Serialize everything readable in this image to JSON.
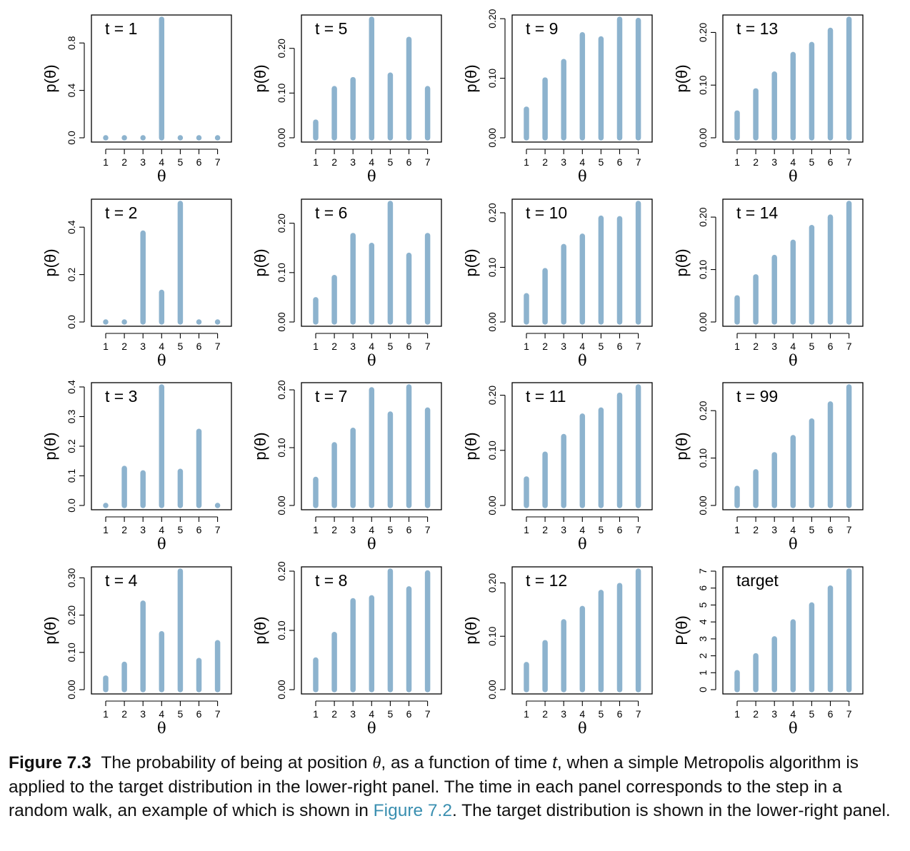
{
  "chart_data": [
    {
      "type": "bar",
      "title": "t = 1",
      "xlabel": "θ",
      "ylabel": "p(θ)",
      "categories": [
        "1",
        "2",
        "3",
        "4",
        "5",
        "6",
        "7"
      ],
      "values": [
        0,
        0,
        0,
        1,
        0,
        0,
        0
      ],
      "ylim": [
        0,
        1.0
      ],
      "yticks": [
        "0.0",
        "0.4",
        "0.8"
      ],
      "ytick_values": [
        0,
        0.4,
        0.8
      ]
    },
    {
      "type": "bar",
      "title": "t = 2",
      "xlabel": "θ",
      "ylabel": "p(θ)",
      "categories": [
        "1",
        "2",
        "3",
        "4",
        "5",
        "6",
        "7"
      ],
      "values": [
        0,
        0,
        0.375,
        0.125,
        0.5,
        0,
        0
      ],
      "ylim": [
        0,
        0.5
      ],
      "yticks": [
        "0.0",
        "0.2",
        "0.4"
      ],
      "ytick_values": [
        0,
        0.2,
        0.4
      ]
    },
    {
      "type": "bar",
      "title": "t = 3",
      "xlabel": "θ",
      "ylabel": "p(θ)",
      "categories": [
        "1",
        "2",
        "3",
        "4",
        "5",
        "6",
        "7"
      ],
      "values": [
        0,
        0.125,
        0.11,
        0.4,
        0.115,
        0.25,
        0
      ],
      "ylim": [
        0,
        0.4
      ],
      "yticks": [
        "0.0",
        "0.1",
        "0.2",
        "0.3",
        "0.4"
      ],
      "ytick_values": [
        0,
        0.1,
        0.2,
        0.3,
        0.4
      ]
    },
    {
      "type": "bar",
      "title": "t = 4",
      "xlabel": "θ",
      "ylabel": "p(θ)",
      "categories": [
        "1",
        "2",
        "3",
        "4",
        "5",
        "6",
        "7"
      ],
      "values": [
        0.031,
        0.068,
        0.232,
        0.15,
        0.318,
        0.078,
        0.126
      ],
      "ylim": [
        0,
        0.318
      ],
      "yticks": [
        "0.00",
        "0.10",
        "0.20",
        "0.30"
      ],
      "ytick_values": [
        0,
        0.1,
        0.2,
        0.3
      ]
    },
    {
      "type": "bar",
      "title": "t = 5",
      "xlabel": "θ",
      "ylabel": "p(θ)",
      "categories": [
        "1",
        "2",
        "3",
        "4",
        "5",
        "6",
        "7"
      ],
      "values": [
        0.035,
        0.11,
        0.13,
        0.265,
        0.14,
        0.22,
        0.11
      ],
      "ylim": [
        0,
        0.265
      ],
      "yticks": [
        "0.00",
        "0.10",
        "0.20"
      ],
      "ytick_values": [
        0,
        0.1,
        0.2
      ]
    },
    {
      "type": "bar",
      "title": "t = 6",
      "xlabel": "θ",
      "ylabel": "p(θ)",
      "categories": [
        "1",
        "2",
        "3",
        "4",
        "5",
        "6",
        "7"
      ],
      "values": [
        0.045,
        0.09,
        0.175,
        0.155,
        0.24,
        0.135,
        0.175
      ],
      "ylim": [
        0,
        0.24
      ],
      "yticks": [
        "0.00",
        "0.10",
        "0.20"
      ],
      "ytick_values": [
        0,
        0.1,
        0.2
      ]
    },
    {
      "type": "bar",
      "title": "t = 7",
      "xlabel": "θ",
      "ylabel": "p(θ)",
      "categories": [
        "1",
        "2",
        "3",
        "4",
        "5",
        "6",
        "7"
      ],
      "values": [
        0.045,
        0.105,
        0.13,
        0.2,
        0.158,
        0.205,
        0.165
      ],
      "ylim": [
        0,
        0.205
      ],
      "yticks": [
        "0.00",
        "0.10",
        "0.20"
      ],
      "ytick_values": [
        0,
        0.1,
        0.2
      ]
    },
    {
      "type": "bar",
      "title": "t = 8",
      "xlabel": "θ",
      "ylabel": "p(θ)",
      "categories": [
        "1",
        "2",
        "3",
        "4",
        "5",
        "6",
        "7"
      ],
      "values": [
        0.05,
        0.093,
        0.15,
        0.155,
        0.2,
        0.17,
        0.197
      ],
      "ylim": [
        0,
        0.2
      ],
      "yticks": [
        "0.00",
        "0.10",
        "0.20"
      ],
      "ytick_values": [
        0,
        0.1,
        0.2
      ]
    },
    {
      "type": "bar",
      "title": "t = 9",
      "xlabel": "θ",
      "ylabel": "p(θ)",
      "categories": [
        "1",
        "2",
        "3",
        "4",
        "5",
        "6",
        "7"
      ],
      "values": [
        0.048,
        0.097,
        0.128,
        0.173,
        0.166,
        0.199,
        0.197
      ],
      "ylim": [
        0,
        0.199
      ],
      "yticks": [
        "0.00",
        "0.10",
        "0.20"
      ],
      "ytick_values": [
        0,
        0.1,
        0.2
      ]
    },
    {
      "type": "bar",
      "title": "t = 10",
      "xlabel": "θ",
      "ylabel": "p(θ)",
      "categories": [
        "1",
        "2",
        "3",
        "4",
        "5",
        "6",
        "7"
      ],
      "values": [
        0.048,
        0.094,
        0.138,
        0.157,
        0.19,
        0.189,
        0.217
      ],
      "ylim": [
        0,
        0.217
      ],
      "yticks": [
        "0.00",
        "0.10",
        "0.20"
      ],
      "ytick_values": [
        0,
        0.1,
        0.2
      ]
    },
    {
      "type": "bar",
      "title": "t = 11",
      "xlabel": "θ",
      "ylabel": "p(θ)",
      "categories": [
        "1",
        "2",
        "3",
        "4",
        "5",
        "6",
        "7"
      ],
      "values": [
        0.048,
        0.093,
        0.125,
        0.162,
        0.173,
        0.2,
        0.215
      ],
      "ylim": [
        0,
        0.215
      ],
      "yticks": [
        "0.00",
        "0.10",
        "0.20"
      ],
      "ytick_values": [
        0,
        0.1,
        0.2
      ]
    },
    {
      "type": "bar",
      "title": "t = 12",
      "xlabel": "θ",
      "ylabel": "p(θ)",
      "categories": [
        "1",
        "2",
        "3",
        "4",
        "5",
        "6",
        "7"
      ],
      "values": [
        0.047,
        0.088,
        0.127,
        0.152,
        0.182,
        0.195,
        0.222
      ],
      "ylim": [
        0,
        0.222
      ],
      "yticks": [
        "0.00",
        "0.10",
        "0.20"
      ],
      "ytick_values": [
        0,
        0.1,
        0.2
      ]
    },
    {
      "type": "bar",
      "title": "t = 13",
      "xlabel": "θ",
      "ylabel": "p(θ)",
      "categories": [
        "1",
        "2",
        "3",
        "4",
        "5",
        "6",
        "7"
      ],
      "values": [
        0.047,
        0.089,
        0.121,
        0.158,
        0.177,
        0.204,
        0.225
      ],
      "ylim": [
        0,
        0.225
      ],
      "yticks": [
        "0.00",
        "0.10",
        "0.20"
      ],
      "ytick_values": [
        0,
        0.1,
        0.2
      ]
    },
    {
      "type": "bar",
      "title": "t = 14",
      "xlabel": "θ",
      "ylabel": "p(θ)",
      "categories": [
        "1",
        "2",
        "3",
        "4",
        "5",
        "6",
        "7"
      ],
      "values": [
        0.046,
        0.086,
        0.123,
        0.152,
        0.18,
        0.2,
        0.226
      ],
      "ylim": [
        0,
        0.226
      ],
      "yticks": [
        "0.00",
        "0.10",
        "0.20"
      ],
      "ytick_values": [
        0,
        0.1,
        0.2
      ]
    },
    {
      "type": "bar",
      "title": "t = 99",
      "xlabel": "θ",
      "ylabel": "p(θ)",
      "categories": [
        "1",
        "2",
        "3",
        "4",
        "5",
        "6",
        "7"
      ],
      "values": [
        0.036,
        0.071,
        0.107,
        0.143,
        0.178,
        0.214,
        0.25
      ],
      "ylim": [
        0,
        0.25
      ],
      "yticks": [
        "0.00",
        "0.10",
        "0.20"
      ],
      "ytick_values": [
        0,
        0.1,
        0.2
      ]
    },
    {
      "type": "bar",
      "title": "target",
      "xlabel": "θ",
      "ylabel": "P(θ)",
      "categories": [
        "1",
        "2",
        "3",
        "4",
        "5",
        "6",
        "7"
      ],
      "values": [
        1,
        2,
        3,
        4,
        5,
        6,
        7
      ],
      "ylim": [
        0,
        7
      ],
      "yticks": [
        "0",
        "1",
        "2",
        "3",
        "4",
        "5",
        "6",
        "7"
      ],
      "ytick_values": [
        0,
        1,
        2,
        3,
        4,
        5,
        6,
        7
      ]
    }
  ],
  "style": {
    "bar_color": "#8db3ce",
    "axis_color": "#000000"
  },
  "caption": {
    "label": "Figure 7.3",
    "text_1": "The probability of being at position ",
    "theta": "θ",
    "text_2": ", as a function of time ",
    "t": "t",
    "text_3": ", when a simple Metropolis algorithm is applied to the target distribution in the lower-right panel. The time in each panel corresponds to the step in a random walk, an example of which is shown in ",
    "link": "Figure 7.2",
    "text_4": ". The target distribution is shown in the lower-right panel."
  }
}
